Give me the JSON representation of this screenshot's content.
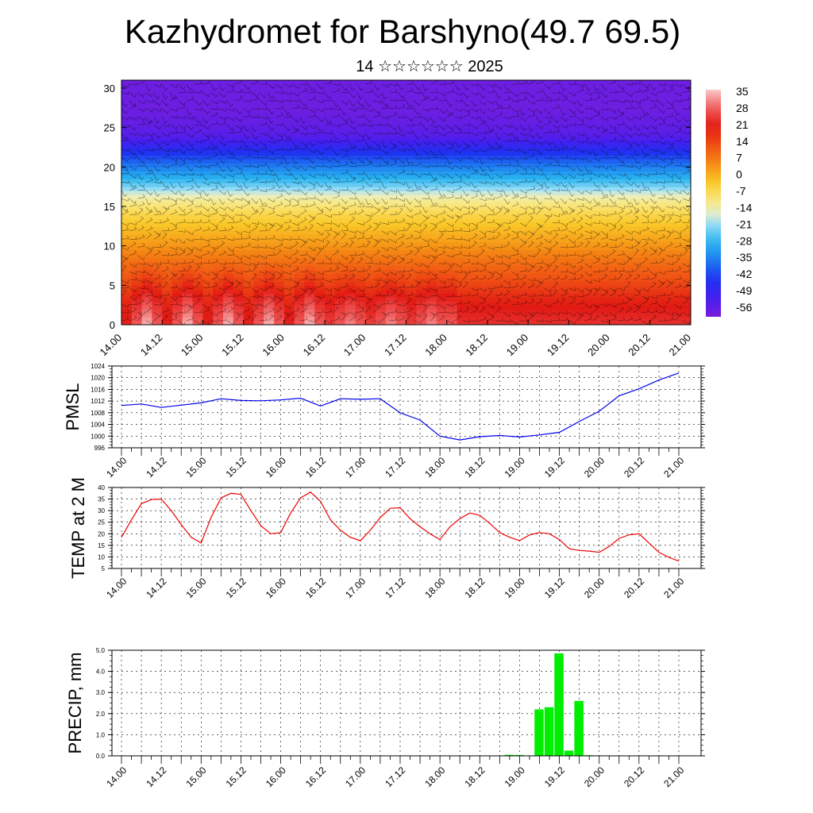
{
  "title": "Kazhydromet for Barshyno(49.7 69.5)",
  "subtitle": "14 ☆☆☆☆☆☆ 2025",
  "chart_data": [
    {
      "type": "heatmap",
      "x_tick_labels": [
        "14.00",
        "14.12",
        "15.00",
        "15.12",
        "16.00",
        "16.12",
        "17.00",
        "17.12",
        "18.00",
        "18.12",
        "19.00",
        "19.12",
        "20.00",
        "20.12",
        "21.00"
      ],
      "y_tick_labels": [
        "0",
        "5",
        "10",
        "15",
        "20",
        "25",
        "30"
      ],
      "ylim": [
        0,
        31
      ],
      "xlim": [
        0,
        14
      ],
      "colorbar_labels": [
        "35",
        "28",
        "21",
        "14",
        "7",
        "0",
        "-7",
        "-14",
        "-21",
        "-28",
        "-35",
        "-42",
        "-49",
        "-56"
      ],
      "colorbar_range": [
        -60,
        38
      ],
      "layers": [
        {
          "height": 0,
          "temp": 30
        },
        {
          "height": 3,
          "temp": 24
        },
        {
          "height": 6,
          "temp": 15
        },
        {
          "height": 10,
          "temp": 5
        },
        {
          "height": 14,
          "temp": -5
        },
        {
          "height": 16,
          "temp": -12
        },
        {
          "height": 18,
          "temp": -25
        },
        {
          "height": 21,
          "temp": -40
        },
        {
          "height": 24,
          "temp": -55
        },
        {
          "height": 27,
          "temp": -58
        },
        {
          "height": 31,
          "temp": -58
        }
      ],
      "overlay": "wind barbs"
    },
    {
      "type": "line",
      "ylabel": "PMSL",
      "ylim": [
        996,
        1024
      ],
      "y_tick_labels": [
        "996",
        "1000",
        "1004",
        "1008",
        "1012",
        "1016",
        "1020",
        "1024"
      ],
      "x_tick_labels": [
        "14.00",
        "14.12",
        "15.00",
        "15.12",
        "16.00",
        "16.12",
        "17.00",
        "17.12",
        "18.00",
        "18.12",
        "19.00",
        "19.12",
        "20.00",
        "20.12",
        "21.00"
      ],
      "color": "#0000ee",
      "x": [
        0,
        0.5,
        1,
        1.5,
        2,
        2.5,
        3,
        3.5,
        4,
        4.5,
        5,
        5.5,
        6,
        6.5,
        7,
        7.5,
        8,
        8.5,
        9,
        9.5,
        10,
        10.5,
        11,
        11.5,
        12,
        12.5,
        13,
        13.5,
        14
      ],
      "values": [
        1010.5,
        1011,
        1009.8,
        1010.6,
        1011.4,
        1012.8,
        1012.2,
        1012.1,
        1012.4,
        1013,
        1010.3,
        1012.8,
        1012.6,
        1012.8,
        1008,
        1005.5,
        1000,
        998.7,
        999.8,
        1000.2,
        999.7,
        1000.4,
        1001.3,
        1005,
        1008.5,
        1013.8,
        1016.2,
        1019.2,
        1021.6
      ]
    },
    {
      "type": "line",
      "ylabel": "TEMP at 2 M",
      "ylim": [
        5,
        40
      ],
      "y_tick_labels": [
        "5",
        "10",
        "15",
        "20",
        "25",
        "30",
        "35",
        "40"
      ],
      "x_tick_labels": [
        "14.00",
        "14.12",
        "15.00",
        "15.12",
        "16.00",
        "16.12",
        "17.00",
        "17.12",
        "18.00",
        "18.12",
        "19.00",
        "19.12",
        "20.00",
        "20.12",
        "21.00"
      ],
      "color": "#ee0000",
      "x": [
        0,
        0.25,
        0.5,
        0.75,
        1,
        1.25,
        1.5,
        1.75,
        2,
        2.25,
        2.5,
        2.75,
        3,
        3.25,
        3.5,
        3.75,
        4,
        4.25,
        4.5,
        4.75,
        5,
        5.25,
        5.5,
        5.75,
        6,
        6.25,
        6.5,
        6.75,
        7,
        7.25,
        7.5,
        7.75,
        8,
        8.25,
        8.5,
        8.75,
        9,
        9.25,
        9.5,
        9.75,
        10,
        10.25,
        10.5,
        10.75,
        11,
        11.25,
        11.5,
        11.75,
        12,
        12.25,
        12.5,
        12.75,
        13,
        13.25,
        13.5,
        13.75,
        14
      ],
      "values": [
        18.5,
        26,
        33,
        34.8,
        35,
        30,
        24,
        18.5,
        16,
        27,
        35.5,
        37.5,
        37,
        30,
        23.5,
        20,
        20.5,
        29,
        35.5,
        38,
        34,
        26,
        21.5,
        18.5,
        17,
        21.5,
        27,
        31,
        31.2,
        26.5,
        23,
        20,
        17.5,
        23,
        26.5,
        29,
        28,
        24.5,
        20.5,
        18.5,
        17,
        19.5,
        20.5,
        20,
        17.5,
        13.5,
        12.8,
        12.5,
        12,
        14.5,
        18,
        19.5,
        20,
        16,
        12,
        9.8,
        8.2
      ]
    },
    {
      "type": "bar",
      "ylabel": "PRECIP, mm",
      "ylim": [
        0,
        5
      ],
      "y_tick_labels": [
        "0.0",
        "1.0",
        "2.0",
        "3.0",
        "4.0",
        "5.0"
      ],
      "x_tick_labels": [
        "14.00",
        "14.12",
        "15.00",
        "15.12",
        "16.00",
        "16.12",
        "17.00",
        "17.12",
        "18.00",
        "18.12",
        "19.00",
        "19.12",
        "20.00",
        "20.12",
        "21.00"
      ],
      "color": "#00ee00",
      "x": [
        9.75,
        10,
        10.25,
        10.5,
        10.75,
        11,
        11.25,
        11.5,
        11.75
      ],
      "values": [
        0.05,
        0.04,
        0.01,
        2.2,
        2.3,
        4.85,
        0.25,
        2.6,
        0.03
      ]
    }
  ]
}
